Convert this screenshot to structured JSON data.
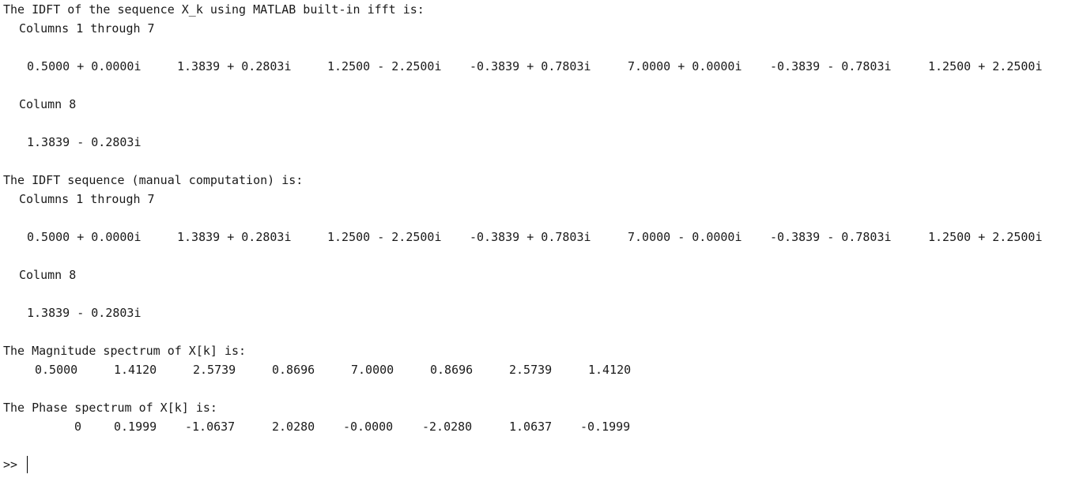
{
  "console": {
    "ifft_block": {
      "header": "The IDFT of the sequence X_k using MATLAB built-in ifft is:",
      "cols_label_1": "Columns 1 through 7",
      "values_1": [
        "0.5000 + 0.0000i",
        "1.3839 + 0.2803i",
        "1.2500 - 2.2500i",
        "-0.3839 + 0.7803i",
        "7.0000 + 0.0000i",
        "-0.3839 - 0.7803i",
        "1.2500 + 2.2500i"
      ],
      "cols_label_2": "Column 8",
      "values_2": [
        "1.3839 - 0.2803i"
      ]
    },
    "manual_block": {
      "header": "The IDFT sequence (manual computation) is:",
      "cols_label_1": "Columns 1 through 7",
      "values_1": [
        "0.5000 + 0.0000i",
        "1.3839 + 0.2803i",
        "1.2500 - 2.2500i",
        "-0.3839 + 0.7803i",
        "7.0000 - 0.0000i",
        "-0.3839 - 0.7803i",
        "1.2500 + 2.2500i"
      ],
      "cols_label_2": "Column 8",
      "values_2": [
        "1.3839 - 0.2803i"
      ]
    },
    "magnitude_block": {
      "header": "The Magnitude spectrum of X[k] is:",
      "values": [
        "0.5000",
        "1.4120",
        "2.5739",
        "0.8696",
        "7.0000",
        "0.8696",
        "2.5739",
        "1.4120"
      ]
    },
    "phase_block": {
      "header": "The Phase spectrum of X[k] is:",
      "values": [
        "0",
        "0.1999",
        "-1.0637",
        "2.0280",
        "-0.0000",
        "-2.0280",
        "1.0637",
        "-0.1999"
      ]
    },
    "prompt": ">>"
  }
}
